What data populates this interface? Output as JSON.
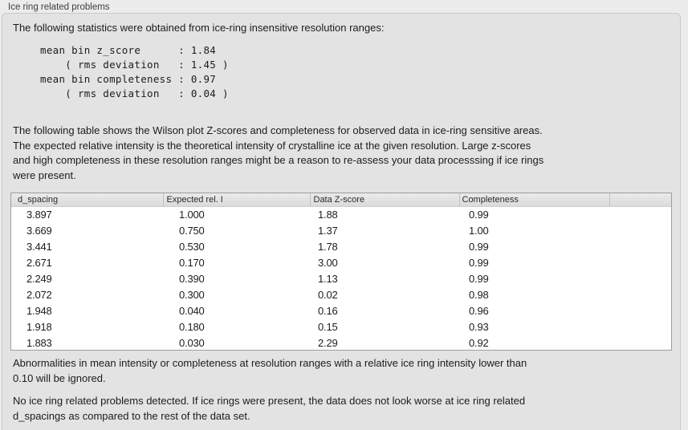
{
  "panel": {
    "title": "Ice ring related problems",
    "intro": "The following statistics were obtained from ice-ring insensitive resolution ranges:",
    "stats_lines": [
      "mean bin z_score      : 1.84",
      "    ( rms deviation   : 1.45 )",
      "mean bin completeness : 0.97",
      "    ( rms deviation   : 0.04 )"
    ],
    "description_lines": [
      "The following table shows the Wilson plot Z-scores and completeness for observed data in ice-ring sensitive areas.",
      "The expected relative intensity is the theoretical intensity of crystalline ice at the given resolution. Large z-scores",
      "and high completeness in these resolution ranges might be a reason to re-assess your data processsing if ice rings",
      "were present."
    ],
    "note_lines": [
      "Abnormalities in mean intensity or completeness at resolution ranges with a relative ice ring intensity lower than",
      "0.10 will be ignored."
    ],
    "conclusion_lines": [
      "No ice ring related problems detected. If ice rings were present, the data does not look worse at ice ring related",
      "d_spacings as compared to the rest of the data set."
    ]
  },
  "table": {
    "columns": [
      "d_spacing",
      "Expected rel. I",
      "Data Z-score",
      "Completeness",
      ""
    ],
    "rows": [
      [
        "3.897",
        "1.000",
        "1.88",
        "0.99"
      ],
      [
        "3.669",
        "0.750",
        "1.37",
        "1.00"
      ],
      [
        "3.441",
        "0.530",
        "1.78",
        "0.99"
      ],
      [
        "2.671",
        "0.170",
        "3.00",
        "0.99"
      ],
      [
        "2.249",
        "0.390",
        "1.13",
        "0.99"
      ],
      [
        "2.072",
        "0.300",
        "0.02",
        "0.98"
      ],
      [
        "1.948",
        "0.040",
        "0.16",
        "0.96"
      ],
      [
        "1.918",
        "0.180",
        "0.15",
        "0.93"
      ],
      [
        "1.883",
        "0.030",
        "2.29",
        "0.92"
      ]
    ]
  },
  "colors": {
    "page_bg": "#ececec",
    "panel_bg": "#e3e3e3",
    "panel_border": "#c9c9c9",
    "table_border": "#9e9e9e",
    "header_sep": "#bfbfbf",
    "text": "#1c1c1c",
    "title_color": "#3e3e3e"
  }
}
